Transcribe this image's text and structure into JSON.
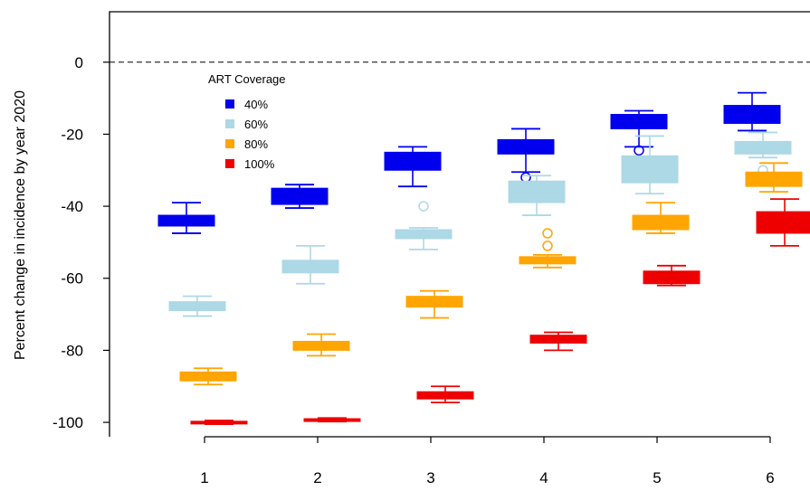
{
  "chart_data": {
    "type": "box",
    "title": "",
    "xlabel": "",
    "ylabel": "Percent change in incidence by year 2020",
    "ylim": [
      -104,
      14
    ],
    "y_ticks": [
      0,
      -20,
      -40,
      -60,
      -80,
      -100
    ],
    "y_tick_labels": [
      "0",
      "-20",
      "-40",
      "-60",
      "-80",
      "-100"
    ],
    "categories": [
      "1",
      "2",
      "3",
      "4",
      "5",
      "6"
    ],
    "reference_line": 0,
    "legend": {
      "title": "ART Coverage",
      "position": "top-left"
    },
    "series": [
      {
        "name": "40%",
        "color": "#0000EE",
        "boxes": [
          {
            "whisker_low": -47.5,
            "q1": -45.5,
            "median": -44,
            "q3": -42.5,
            "whisker_high": -39,
            "outliers": []
          },
          {
            "whisker_low": -40.5,
            "q1": -39.5,
            "median": -37.5,
            "q3": -35,
            "whisker_high": -34,
            "outliers": []
          },
          {
            "whisker_low": -34.5,
            "q1": -30,
            "median": -28,
            "q3": -25,
            "whisker_high": -23.5,
            "outliers": []
          },
          {
            "whisker_low": -30.5,
            "q1": -25.5,
            "median": -23.5,
            "q3": -21.5,
            "whisker_high": -18.5,
            "outliers": [
              -32
            ]
          },
          {
            "whisker_low": -23.5,
            "q1": -18.5,
            "median": -17,
            "q3": -14.5,
            "whisker_high": -13.5,
            "outliers": [
              -24.5
            ]
          },
          {
            "whisker_low": -19,
            "q1": -17,
            "median": -15,
            "q3": -12,
            "whisker_high": -8.5,
            "outliers": []
          }
        ]
      },
      {
        "name": "60%",
        "color": "#ADD8E6",
        "boxes": [
          {
            "whisker_low": -70.5,
            "q1": -69,
            "median": -68,
            "q3": -66.5,
            "whisker_high": -65,
            "outliers": []
          },
          {
            "whisker_low": -61.5,
            "q1": -58.5,
            "median": -57,
            "q3": -55,
            "whisker_high": -51,
            "outliers": []
          },
          {
            "whisker_low": -52,
            "q1": -49,
            "median": -48,
            "q3": -46.5,
            "whisker_high": -46,
            "outliers": [
              -40
            ]
          },
          {
            "whisker_low": -42.5,
            "q1": -39,
            "median": -36.5,
            "q3": -33,
            "whisker_high": -31.5,
            "outliers": []
          },
          {
            "whisker_low": -36.5,
            "q1": -33.5,
            "median": -30,
            "q3": -26,
            "whisker_high": -20.5,
            "outliers": []
          },
          {
            "whisker_low": -26.5,
            "q1": -25.5,
            "median": -24,
            "q3": -22,
            "whisker_high": -19.5,
            "outliers": [
              -30
            ]
          }
        ]
      },
      {
        "name": "80%",
        "color": "#FFA500",
        "boxes": [
          {
            "whisker_low": -89.5,
            "q1": -88.5,
            "median": -87,
            "q3": -86,
            "whisker_high": -85,
            "outliers": []
          },
          {
            "whisker_low": -81.5,
            "q1": -80,
            "median": -79,
            "q3": -77.5,
            "whisker_high": -75.5,
            "outliers": []
          },
          {
            "whisker_low": -71,
            "q1": -68,
            "median": -66.5,
            "q3": -65,
            "whisker_high": -63.5,
            "outliers": []
          },
          {
            "whisker_low": -57,
            "q1": -56,
            "median": -55,
            "q3": -54,
            "whisker_high": -53.5,
            "outliers": [
              -51,
              -47.5
            ]
          },
          {
            "whisker_low": -47.5,
            "q1": -46.5,
            "median": -44.5,
            "q3": -42.5,
            "whisker_high": -39,
            "outliers": []
          },
          {
            "whisker_low": -36,
            "q1": -34.5,
            "median": -32.5,
            "q3": -30.5,
            "whisker_high": -28,
            "outliers": []
          }
        ]
      },
      {
        "name": "100%",
        "color": "#EE0000",
        "boxes": [
          {
            "whisker_low": -100.5,
            "q1": -100.3,
            "median": -100,
            "q3": -99.7,
            "whisker_high": -99.5,
            "outliers": []
          },
          {
            "whisker_low": -99.8,
            "q1": -99.6,
            "median": -99.3,
            "q3": -99,
            "whisker_high": -98.8,
            "outliers": []
          },
          {
            "whisker_low": -94.5,
            "q1": -93.5,
            "median": -92.5,
            "q3": -91.5,
            "whisker_high": -90,
            "outliers": []
          },
          {
            "whisker_low": -80,
            "q1": -78,
            "median": -77,
            "q3": -75.8,
            "whisker_high": -75,
            "outliers": []
          },
          {
            "whisker_low": -62,
            "q1": -61.5,
            "median": -60,
            "q3": -58,
            "whisker_high": -56.5,
            "outliers": []
          },
          {
            "whisker_low": -51,
            "q1": -47.5,
            "median": -44.5,
            "q3": -41.5,
            "whisker_high": -38,
            "outliers": []
          }
        ]
      }
    ]
  }
}
